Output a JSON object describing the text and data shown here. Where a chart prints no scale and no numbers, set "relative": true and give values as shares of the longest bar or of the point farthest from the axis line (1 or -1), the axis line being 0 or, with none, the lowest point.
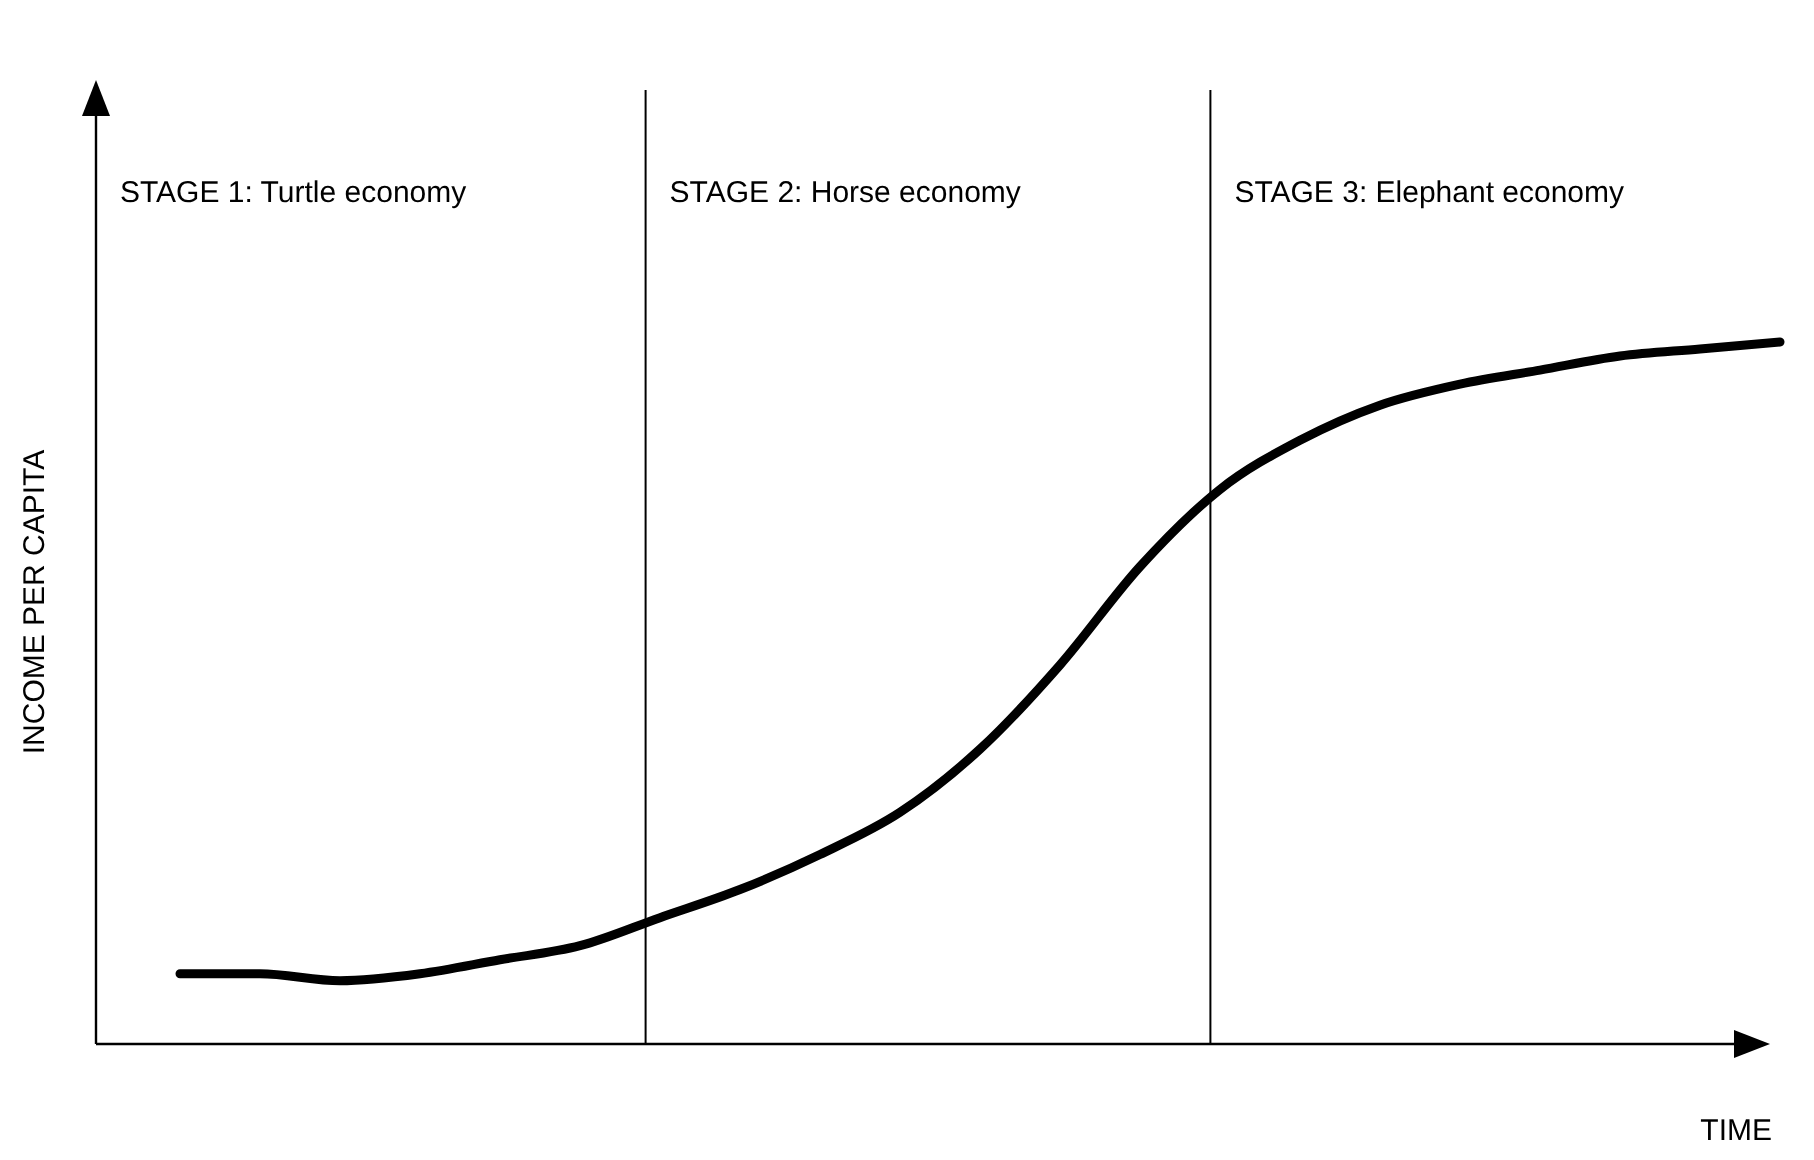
{
  "chart_data": {
    "type": "line",
    "relative": true,
    "xlabel": "TIME",
    "ylabel": "INCOME PER CAPITA",
    "categories": [
      null,
      null,
      null,
      null,
      null,
      null,
      null,
      null,
      null,
      null,
      null,
      null,
      null,
      null,
      null,
      null,
      null,
      null,
      null,
      null,
      null
    ],
    "values": [
      0.1,
      0.1,
      0.09,
      0.1,
      0.12,
      0.14,
      0.18,
      0.22,
      0.27,
      0.33,
      0.42,
      0.54,
      0.68,
      0.79,
      0.86,
      0.91,
      0.94,
      0.96,
      0.98,
      0.99,
      1
    ],
    "color": "#000000",
    "marker": "none",
    "line_style": "solid",
    "annotations": [
      "STAGE 1: Turtle economy",
      "STAGE 2: Horse economy",
      "STAGE 3: Elephant economy"
    ]
  }
}
